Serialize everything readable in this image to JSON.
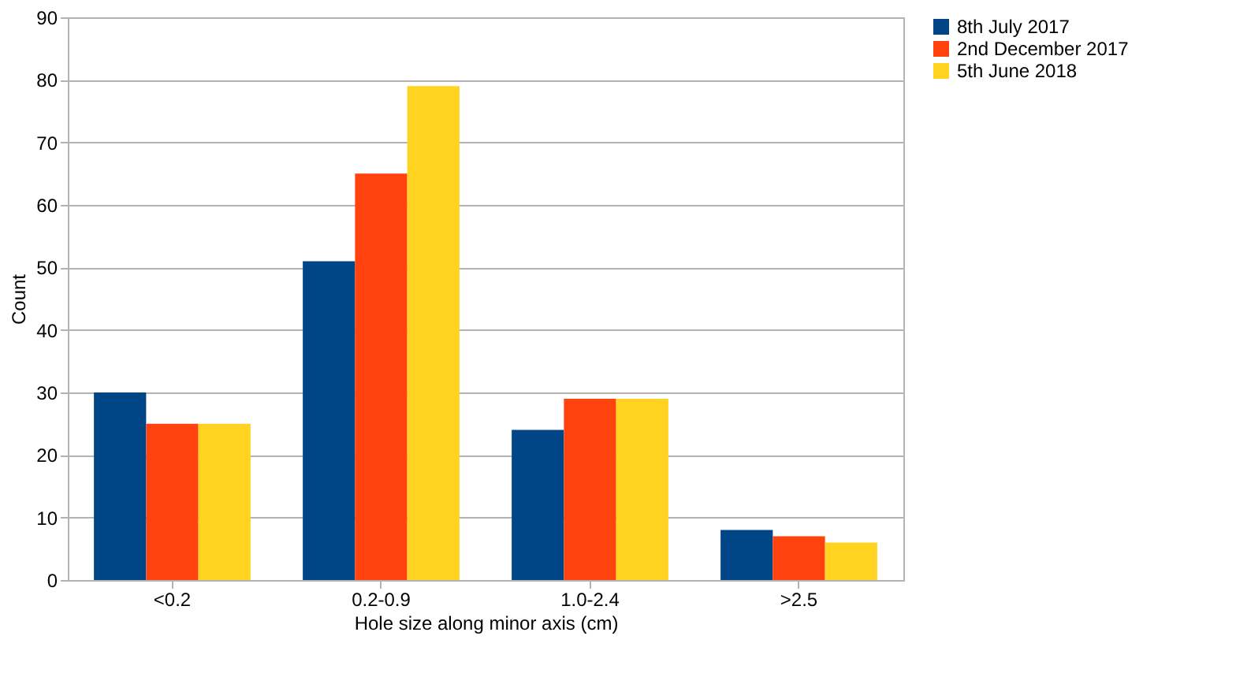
{
  "chart_data": {
    "type": "bar",
    "xlabel": "Hole size along minor axis (cm)",
    "ylabel": "Count",
    "categories": [
      "<0.2",
      "0.2-0.9",
      "1.0-2.4",
      ">2.5"
    ],
    "series": [
      {
        "name": "8th July 2017",
        "color": "#004586",
        "values": [
          30,
          51,
          24,
          8
        ]
      },
      {
        "name": "2nd December 2017",
        "color": "#ff420e",
        "values": [
          25,
          65,
          29,
          7
        ]
      },
      {
        "name": "5th June 2018",
        "color": "#ffd320",
        "values": [
          25,
          79,
          29,
          6
        ]
      }
    ],
    "ylim": [
      0,
      90
    ],
    "yticks": [
      0,
      10,
      20,
      30,
      40,
      50,
      60,
      70,
      80,
      90
    ],
    "grid": "y",
    "legend": "right"
  }
}
